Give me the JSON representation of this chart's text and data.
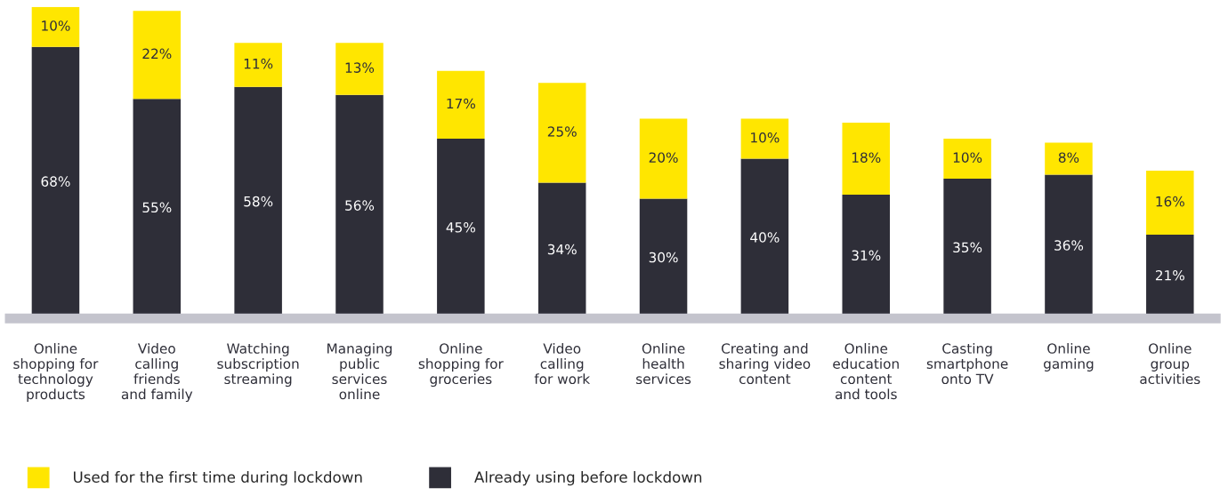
{
  "chart_data": {
    "type": "bar",
    "stacked": true,
    "categories": [
      "Online\nshopping for\ntechnology\nproducts",
      "Video\ncalling\nfriends\nand family",
      "Watching\nsubscription\nstreaming",
      "Managing\npublic\nservices\nonline",
      "Online\nshopping for\ngroceries",
      "Video\ncalling\nfor work",
      "Online\nhealth\nservices",
      "Creating and\nsharing video\ncontent",
      "Online\neducation\ncontent\nand tools",
      "Casting\nsmartphone\nonto TV",
      "Online\ngaming",
      "Online\ngroup\nactivities"
    ],
    "series": [
      {
        "name": "Already using before lockdown",
        "color": "#2e2e38",
        "values": [
          68,
          55,
          58,
          56,
          45,
          34,
          30,
          40,
          31,
          35,
          36,
          21
        ],
        "value_labels": [
          "68%",
          "55%",
          "58%",
          "56%",
          "45%",
          "34%",
          "30%",
          "40%",
          "31%",
          "35%",
          "36%",
          "21%"
        ]
      },
      {
        "name": "Used for the first time during lockdown",
        "color": "#ffe600",
        "values": [
          10,
          22,
          11,
          13,
          17,
          25,
          20,
          10,
          18,
          10,
          8,
          16
        ],
        "value_labels": [
          "10%",
          "22%",
          "11%",
          "13%",
          "17%",
          "25%",
          "20%",
          "10%",
          "18%",
          "10%",
          "8%",
          "16%"
        ]
      }
    ],
    "ylim": [
      0,
      78
    ],
    "tick_labels": "x",
    "grid": false,
    "legend": "bottom left"
  }
}
